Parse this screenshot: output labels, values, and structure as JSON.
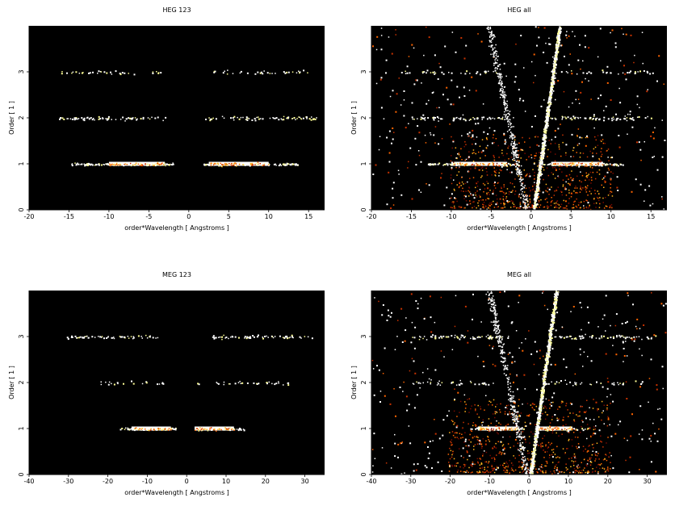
{
  "chart_data": [
    {
      "type": "scatter",
      "title": "HEG 123",
      "xlabel": "order*Wavelength [ Angstroms ]",
      "ylabel": "Order [ 1 ]",
      "xlim": [
        -20,
        17
      ],
      "ylim": [
        0,
        4
      ],
      "xticks": [
        -20,
        -15,
        -10,
        -5,
        0,
        5,
        10,
        15
      ],
      "yticks": [
        0,
        1,
        2,
        3
      ],
      "background": "#000000",
      "colormap": [
        "#7a0a00",
        "#c83200",
        "#ff6400",
        "#ffb41e",
        "#ffff96",
        "#ffffff"
      ],
      "bands": [
        {
          "order": 1,
          "x_ranges": [
            [
              -15,
              -2
            ],
            [
              1.5,
              14
            ]
          ],
          "core_ranges": [
            [
              -10,
              -3
            ],
            [
              2.5,
              10
            ]
          ],
          "density": "high"
        },
        {
          "order": 2,
          "x_ranges": [
            [
              -16.5,
              -3
            ],
            [
              2,
              16
            ]
          ],
          "density": "medium"
        },
        {
          "order": 3,
          "x_ranges": [
            [
              -16,
              -3.5
            ],
            [
              3,
              15.5
            ]
          ],
          "density": "low"
        }
      ],
      "zero_order_streak": false,
      "diffuse": false
    },
    {
      "type": "scatter",
      "title": "HEG all",
      "xlabel": "order*Wavelength [ Angstroms ]",
      "ylabel": "Order [ 1 ]",
      "xlim": [
        -20,
        17
      ],
      "ylim": [
        0,
        4
      ],
      "xticks": [
        -20,
        -15,
        -10,
        -5,
        0,
        5,
        10,
        15
      ],
      "yticks": [
        0,
        1,
        2,
        3
      ],
      "background": "#000000",
      "colormap": [
        "#7a0a00",
        "#c83200",
        "#ff6400",
        "#ffb41e",
        "#ffff96",
        "#ffffff"
      ],
      "bands": [
        {
          "order": 1,
          "x_ranges": [
            [
              -13,
              -1.5
            ],
            [
              1.5,
              11.5
            ]
          ],
          "core_ranges": [
            [
              -10,
              -3
            ],
            [
              2.5,
              9
            ]
          ],
          "density": "high"
        },
        {
          "order": 2,
          "x_ranges": [
            [
              -15,
              -3
            ],
            [
              2,
              15
            ]
          ],
          "density": "medium"
        },
        {
          "order": 3,
          "x_ranges": [
            [
              -16,
              -3
            ],
            [
              3,
              15.5
            ]
          ],
          "density": "low"
        }
      ],
      "zero_order_streak": true,
      "diffuse": true
    },
    {
      "type": "scatter",
      "title": "MEG 123",
      "xlabel": "order*Wavelength [ Angstroms ]",
      "ylabel": "Order [ 1 ]",
      "xlim": [
        -40,
        35
      ],
      "ylim": [
        0,
        4
      ],
      "xticks": [
        -40,
        -30,
        -20,
        -10,
        0,
        10,
        20,
        30
      ],
      "yticks": [
        0,
        1,
        2,
        3
      ],
      "background": "#000000",
      "colormap": [
        "#7a0a00",
        "#c83200",
        "#ff6400",
        "#ffb41e",
        "#ffff96",
        "#ffffff"
      ],
      "bands": [
        {
          "order": 1,
          "x_ranges": [
            [
              -17,
              -2
            ],
            [
              1,
              15
            ]
          ],
          "core_ranges": [
            [
              -14,
              -4
            ],
            [
              2,
              12
            ]
          ],
          "density": "high"
        },
        {
          "order": 2,
          "x_ranges": [
            [
              -22,
              -6
            ],
            [
              2,
              26
            ]
          ],
          "density": "low"
        },
        {
          "order": 3,
          "x_ranges": [
            [
              -31,
              -7
            ],
            [
              6,
              32
            ]
          ],
          "density": "medium"
        }
      ],
      "zero_order_streak": false,
      "diffuse": false
    },
    {
      "type": "scatter",
      "title": "MEG all",
      "xlabel": "order*Wavelength [ Angstroms ]",
      "ylabel": "Order [ 1 ]",
      "xlim": [
        -40,
        35
      ],
      "ylim": [
        0,
        4
      ],
      "xticks": [
        -40,
        -30,
        -20,
        -10,
        0,
        10,
        20,
        30
      ],
      "yticks": [
        0,
        1,
        2,
        3
      ],
      "background": "#000000",
      "colormap": [
        "#7a0a00",
        "#c83200",
        "#ff6400",
        "#ffb41e",
        "#ffff96",
        "#ffffff"
      ],
      "bands": [
        {
          "order": 1,
          "x_ranges": [
            [
              -15,
              -1.5
            ],
            [
              1.5,
              15
            ]
          ],
          "core_ranges": [
            [
              -13,
              -3
            ],
            [
              2,
              11
            ]
          ],
          "density": "high"
        },
        {
          "order": 2,
          "x_ranges": [
            [
              -30,
              -4
            ],
            [
              4,
              30
            ]
          ],
          "density": "low"
        },
        {
          "order": 3,
          "x_ranges": [
            [
              -32,
              -5
            ],
            [
              6,
              32
            ]
          ],
          "density": "medium"
        }
      ],
      "zero_order_streak": true,
      "diffuse": true
    }
  ]
}
